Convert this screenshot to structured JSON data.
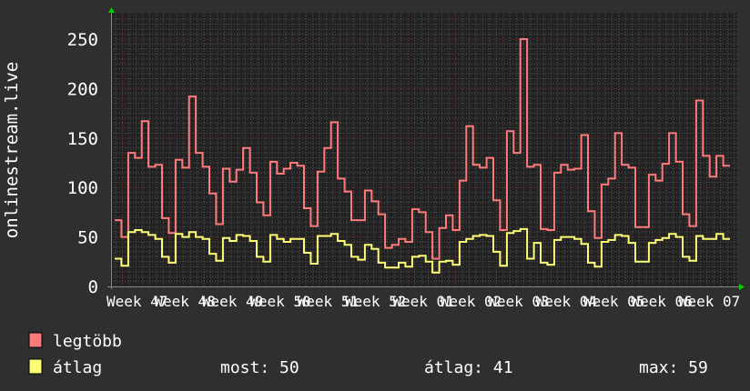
{
  "chart_data": {
    "type": "line",
    "step": true,
    "ylabel": "onlinestream.live",
    "ylim": [
      0,
      275
    ],
    "yticks": [
      "0",
      "50",
      "100",
      "150",
      "200",
      "250"
    ],
    "xticks": [
      "Week 47",
      "Week 48",
      "Week 49",
      "Week 50",
      "Week 51",
      "Week 52",
      "Week 01",
      "Week 02",
      "Week 03",
      "Week 04",
      "Week 05",
      "Week 06",
      "Week 07"
    ],
    "grid": true,
    "colors": {
      "background": "#2f2f2f",
      "plot": "#222222",
      "grid_minor": "#555555",
      "grid_major": "#7a3a3a",
      "axis": "#666666",
      "arrow": "#00cc00"
    },
    "series": [
      {
        "name": "legtöbb",
        "color": "#ff7b7b",
        "values": [
          67,
          50,
          135,
          130,
          167,
          121,
          123,
          69,
          54,
          128,
          120,
          192,
          135,
          121,
          94,
          63,
          119,
          106,
          118,
          140,
          115,
          85,
          72,
          126,
          114,
          119,
          125,
          122,
          79,
          61,
          116,
          140,
          166,
          109,
          96,
          67,
          67,
          97,
          86,
          73,
          39,
          42,
          48,
          45,
          78,
          75,
          55,
          28,
          59,
          72,
          57,
          107,
          162,
          123,
          120,
          130,
          87,
          57,
          157,
          135,
          250,
          121,
          123,
          58,
          57,
          115,
          123,
          118,
          119,
          153,
          76,
          49,
          103,
          109,
          155,
          123,
          120,
          60,
          60,
          113,
          107,
          124,
          155,
          126,
          73,
          61,
          188,
          132,
          111,
          132,
          122
        ]
      },
      {
        "name": "átlag",
        "color": "#ffff77",
        "values": [
          28,
          21,
          55,
          57,
          55,
          52,
          48,
          30,
          24,
          53,
          50,
          55,
          50,
          48,
          33,
          26,
          49,
          46,
          52,
          51,
          46,
          30,
          25,
          52,
          48,
          45,
          48,
          48,
          34,
          23,
          51,
          51,
          53,
          46,
          42,
          30,
          27,
          42,
          38,
          24,
          19,
          19,
          24,
          20,
          30,
          31,
          25,
          14,
          25,
          26,
          22,
          45,
          48,
          51,
          52,
          51,
          35,
          21,
          54,
          56,
          58,
          28,
          44,
          24,
          22,
          47,
          50,
          50,
          48,
          43,
          24,
          20,
          45,
          47,
          52,
          51,
          44,
          25,
          25,
          44,
          47,
          49,
          53,
          50,
          30,
          26,
          51,
          48,
          48,
          53,
          48
        ]
      }
    ]
  },
  "legend": {
    "items": [
      {
        "label": "legtöbb",
        "color": "#ff7b7b"
      },
      {
        "label": "átlag",
        "color": "#ffff77"
      }
    ],
    "stats": {
      "most": "most: 50",
      "atlag": "átlag: 41",
      "max": "max: 59"
    }
  }
}
